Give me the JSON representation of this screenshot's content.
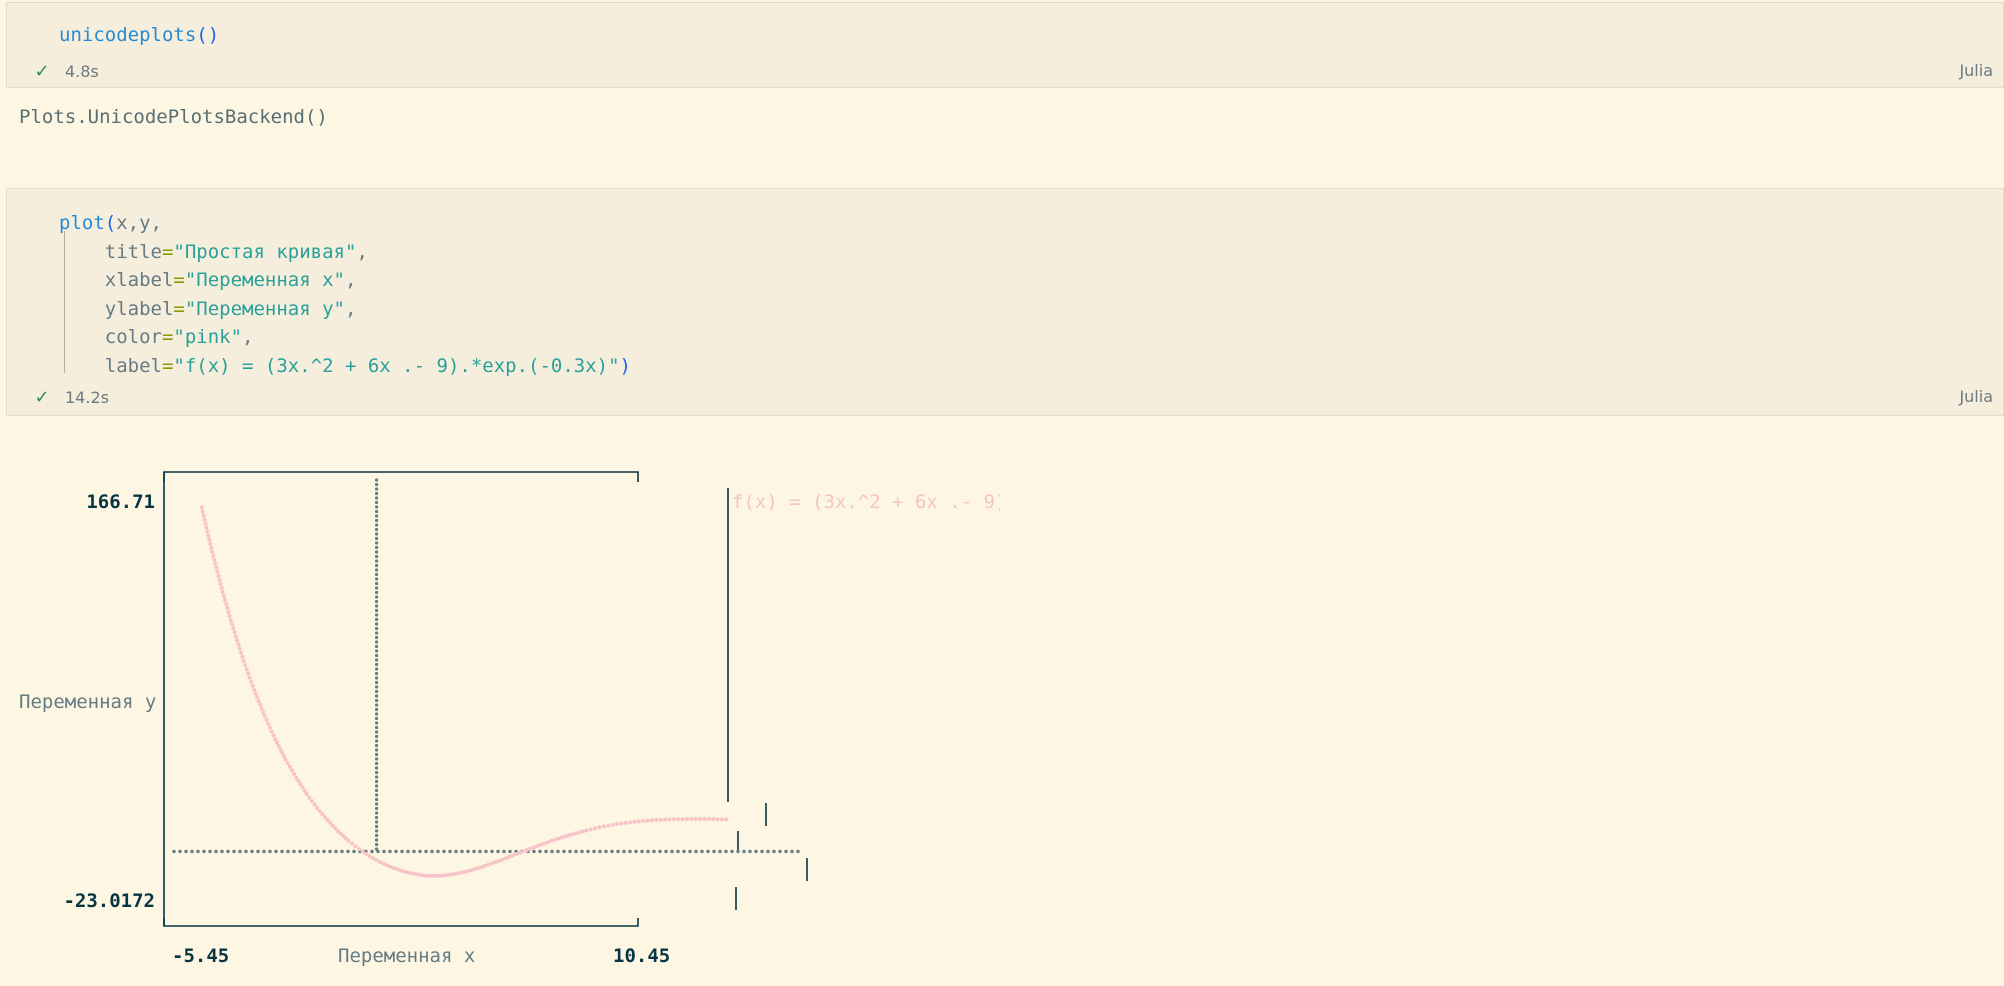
{
  "cells": [
    {
      "code_lines": [
        [
          {
            "t": "unicodeplots",
            "c": "fn"
          },
          {
            "t": "()",
            "c": "paren"
          }
        ]
      ],
      "status": {
        "time": "4.8s"
      },
      "language": "Julia",
      "output": "Plots.UnicodePlotsBackend()"
    },
    {
      "code_lines": [
        [
          {
            "t": "plot",
            "c": "fn"
          },
          {
            "t": "(",
            "c": "paren"
          },
          {
            "t": "x,y,",
            "c": "pun"
          }
        ],
        [
          {
            "t": "    title",
            "c": "pun"
          },
          {
            "t": "=",
            "c": "op"
          },
          {
            "t": "\"Простая кривая\"",
            "c": "str"
          },
          {
            "t": ",",
            "c": "pun"
          }
        ],
        [
          {
            "t": "    xlabel",
            "c": "pun"
          },
          {
            "t": "=",
            "c": "op"
          },
          {
            "t": "\"Переменная x\"",
            "c": "str"
          },
          {
            "t": ",",
            "c": "pun"
          }
        ],
        [
          {
            "t": "    ylabel",
            "c": "pun"
          },
          {
            "t": "=",
            "c": "op"
          },
          {
            "t": "\"Переменная y\"",
            "c": "str"
          },
          {
            "t": ",",
            "c": "pun"
          }
        ],
        [
          {
            "t": "    color",
            "c": "pun"
          },
          {
            "t": "=",
            "c": "op"
          },
          {
            "t": "\"pink\"",
            "c": "str"
          },
          {
            "t": ",",
            "c": "pun"
          }
        ],
        [
          {
            "t": "    label",
            "c": "pun"
          },
          {
            "t": "=",
            "c": "op"
          },
          {
            "t": "\"f(x) = (3x.^2 + 6x .- 9).*exp.(-0.3x)\"",
            "c": "str"
          },
          {
            "t": ")",
            "c": "paren"
          }
        ]
      ],
      "status": {
        "time": "14.2s"
      },
      "language": "Julia"
    }
  ],
  "colors": {
    "background": "#fdf6e3",
    "cell": "#f5eedd",
    "frame": "#073642",
    "series": "#f7c3c9",
    "zero_line": "#657b83"
  },
  "chart_data": {
    "type": "line",
    "xlabel": "Переменная x",
    "ylabel": "Переменная y",
    "xlim": [
      -5.45,
      10.45
    ],
    "ylim": [
      -23.0172,
      166.71
    ],
    "xtick_labels": [
      "-5.45",
      "10.45"
    ],
    "ytick_labels": [
      "166.71",
      "-23.0172"
    ],
    "series": [
      {
        "name": "f(x) = (3x.^2 + 6x .- 9).*exp.(-0.3x)",
        "x": [
          -5.0,
          -4.7,
          -4.4,
          -4.1,
          -3.8,
          -3.5,
          -3.2,
          -2.9,
          -2.6,
          -2.3,
          -2.0,
          -1.7,
          -1.4,
          -1.1,
          -0.8,
          -0.5,
          -0.2,
          0.1,
          0.4,
          0.7,
          1.0,
          1.4,
          1.8,
          2.2,
          2.6,
          3.0,
          3.5,
          4.0,
          4.5,
          5.0,
          5.5,
          6.0,
          6.5,
          7.0,
          7.5,
          8.0,
          8.5,
          9.0,
          9.5,
          10.0
        ],
        "y": [
          163.2,
          142.1,
          123.1,
          105.9,
          90.4,
          76.6,
          64.3,
          53.3,
          43.6,
          35.0,
          27.3,
          20.6,
          14.8,
          9.6,
          5.1,
          1.2,
          -2.2,
          -5.0,
          -7.3,
          -9.1,
          -10.4,
          -11.5,
          -11.6,
          -10.8,
          -9.4,
          -7.4,
          -4.5,
          -1.2,
          2.0,
          5.0,
          7.7,
          10.0,
          11.9,
          13.3,
          14.3,
          14.9,
          15.3,
          15.4,
          15.4,
          15.2
        ]
      }
    ],
    "zero_lines": {
      "x": 0,
      "y": 0
    },
    "legend_position": "right",
    "grid": false
  }
}
